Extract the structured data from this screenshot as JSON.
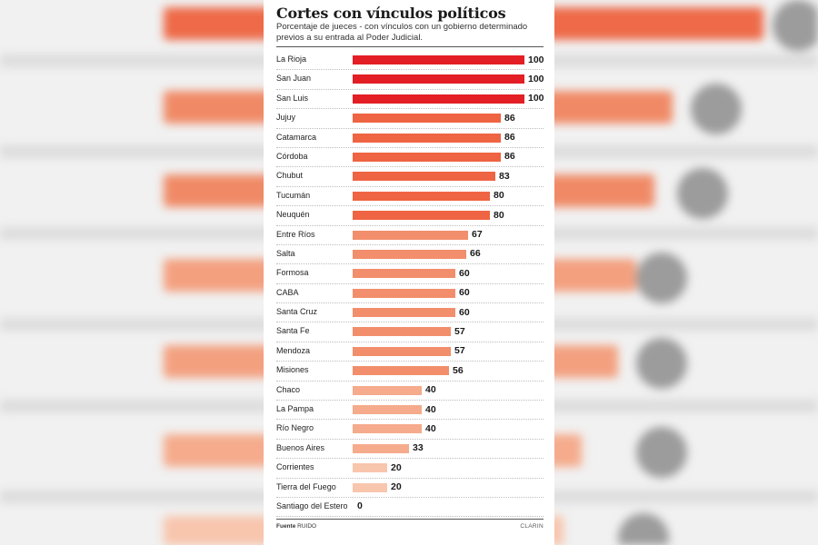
{
  "chart_data": {
    "type": "bar",
    "orientation": "horizontal",
    "title": "Cortes con vínculos políticos",
    "subtitle": "Porcentaje de jueces - con vínculos con un gobierno determinado previos a su entrada al Poder Judicial.",
    "xlim": [
      0,
      100
    ],
    "categories": [
      "La Rioja",
      "San Juan",
      "San Luis",
      "Jujuy",
      "Catamarca",
      "Córdoba",
      "Chubut",
      "Tucumán",
      "Neuquén",
      "Entre Ríos",
      "Salta",
      "Formosa",
      "CABA",
      "Santa Cruz",
      "Santa Fe",
      "Mendoza",
      "Misiones",
      "Chaco",
      "La Pampa",
      "Río Negro",
      "Buenos Aires",
      "Corrientes",
      "Tierra del Fuego",
      "Santiago del Estero"
    ],
    "values": [
      100,
      100,
      100,
      86,
      86,
      86,
      83,
      80,
      80,
      67,
      66,
      60,
      60,
      60,
      57,
      57,
      56,
      40,
      40,
      40,
      33,
      20,
      20,
      0
    ]
  },
  "footer": {
    "source_label": "Fuente",
    "source_value": "RUIDO",
    "brand": "CLARIN"
  },
  "colors": {
    "scale": [
      "#e31e24",
      "#ef6442",
      "#f28e6c",
      "#f5ab8c",
      "#f8c5ad"
    ]
  }
}
